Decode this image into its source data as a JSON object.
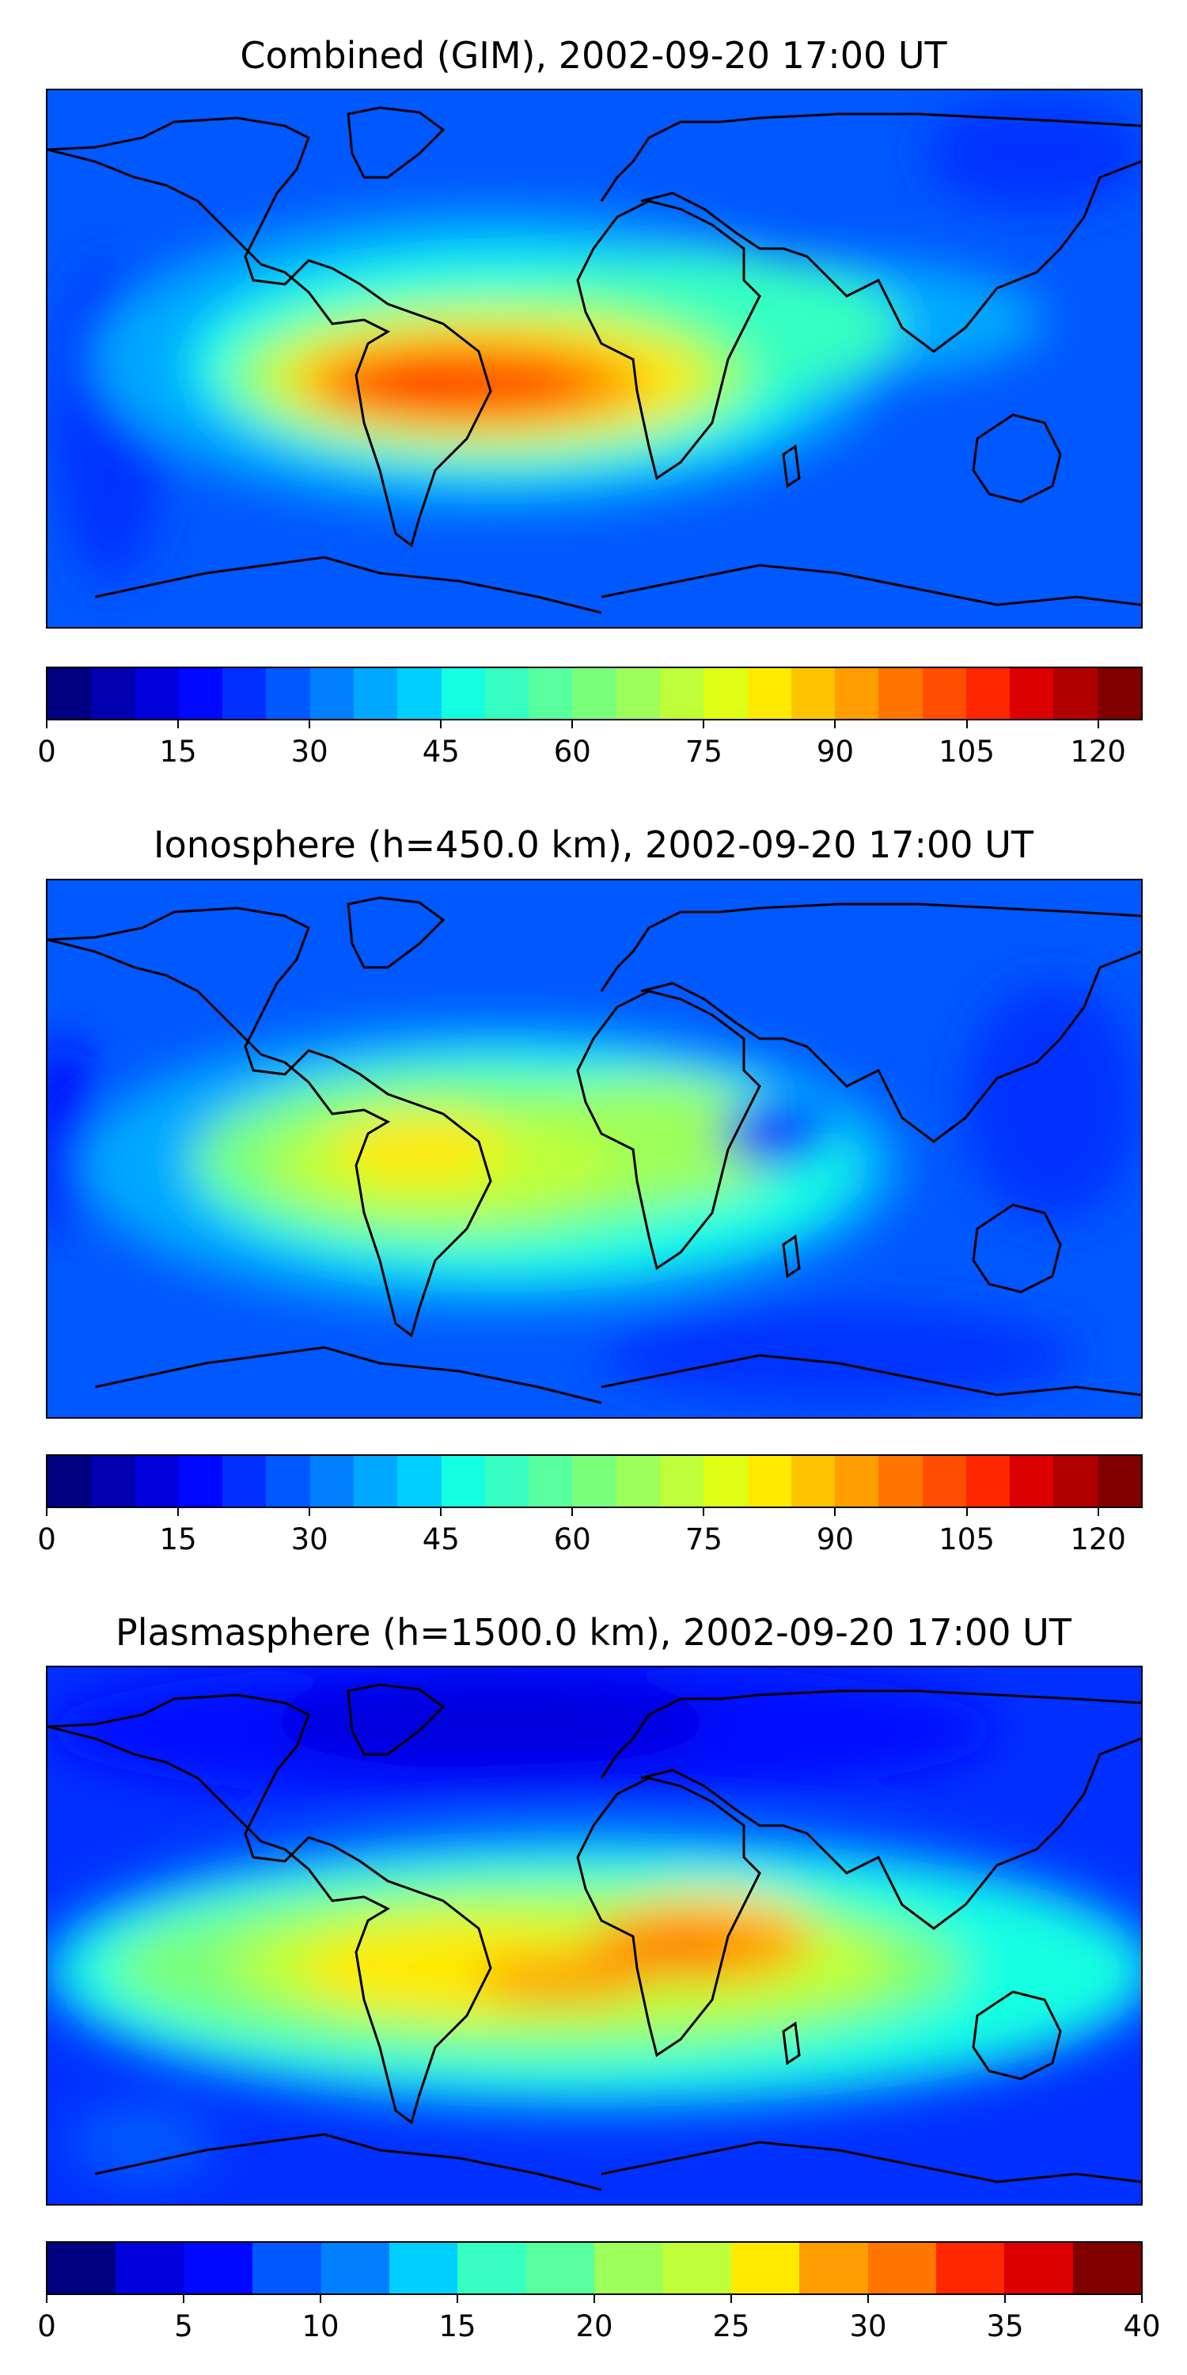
{
  "panels": [
    {
      "title": "Combined (GIM), 2002-09-20 17:00 UT",
      "colorbar_ticks": [
        "0",
        "15",
        "30",
        "45",
        "60",
        "75",
        "90",
        "105",
        "120"
      ],
      "colorbar_range": [
        0,
        125
      ],
      "colorbar_levels": 25
    },
    {
      "title": "Ionosphere  (h=450.0 km), 2002-09-20 17:00 UT",
      "colorbar_ticks": [
        "0",
        "15",
        "30",
        "45",
        "60",
        "75",
        "90",
        "105",
        "120"
      ],
      "colorbar_range": [
        0,
        125
      ],
      "colorbar_levels": 25
    },
    {
      "title": "Plasmasphere (h=1500.0 km), 2002-09-20 17:00 UT",
      "colorbar_ticks": [
        "0",
        "5",
        "10",
        "15",
        "20",
        "25",
        "30",
        "35",
        "40"
      ],
      "colorbar_range": [
        0,
        40
      ],
      "colorbar_levels": 16
    }
  ],
  "colors": {
    "jet": [
      "#000080",
      "#0000ae",
      "#0000dc",
      "#0008ff",
      "#0030ff",
      "#0058ff",
      "#0080ff",
      "#00a8ff",
      "#00d0ff",
      "#14ffe2",
      "#36ffc1",
      "#58ff9f",
      "#7aff7d",
      "#9cff5a",
      "#beff39",
      "#e0ff16",
      "#ffea00",
      "#ffc300",
      "#ff9c00",
      "#ff7500",
      "#ff4e00",
      "#ff2700",
      "#dc0000",
      "#b00000",
      "#800000"
    ]
  }
}
